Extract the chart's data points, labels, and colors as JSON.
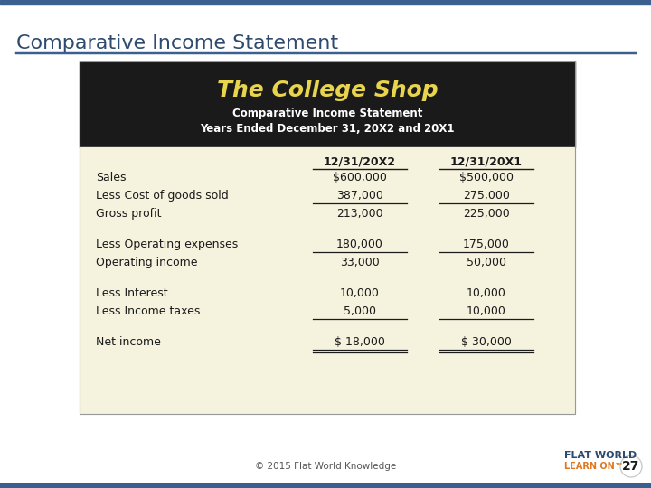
{
  "title": "Comparative Income Statement",
  "title_color": "#2e4a6e",
  "title_fontsize": 16,
  "bg_color": "#ffffff",
  "header_bg": "#1a1a1a",
  "table_bg": "#f5f2de",
  "company_name": "The College Shop",
  "company_color": "#e8d44d",
  "company_fontsize": 18,
  "subtitle1": "Comparative Income Statement",
  "subtitle2": "Years Ended December 31, 20X2 and 20X1",
  "subtitle_color": "#ffffff",
  "col1_header": "12/31/20X2",
  "col2_header": "12/31/20X1",
  "rows": [
    {
      "label": "Sales",
      "col1": "$600,000",
      "col2": "$500,000",
      "ul1": false,
      "ul2": false,
      "space_before": false,
      "double_ul": false
    },
    {
      "label": "Less Cost of goods sold",
      "col1": "387,000",
      "col2": "275,000",
      "ul1": true,
      "ul2": true,
      "space_before": false,
      "double_ul": false
    },
    {
      "label": "Gross profit",
      "col1": "213,000",
      "col2": "225,000",
      "ul1": false,
      "ul2": false,
      "space_before": false,
      "double_ul": false
    },
    {
      "label": "Less Operating expenses",
      "col1": "180,000",
      "col2": "175,000",
      "ul1": true,
      "ul2": true,
      "space_before": true,
      "double_ul": false
    },
    {
      "label": "Operating income",
      "col1": "33,000",
      "col2": "50,000",
      "ul1": false,
      "ul2": false,
      "space_before": false,
      "double_ul": false
    },
    {
      "label": "Less Interest",
      "col1": "10,000",
      "col2": "10,000",
      "ul1": false,
      "ul2": false,
      "space_before": true,
      "double_ul": false
    },
    {
      "label": "Less Income taxes",
      "col1": "5,000",
      "col2": "10,000",
      "ul1": true,
      "ul2": true,
      "space_before": false,
      "double_ul": false
    },
    {
      "label": "Net income",
      "col1": "$ 18,000",
      "col2": "$ 30,000",
      "ul1": true,
      "ul2": true,
      "space_before": true,
      "double_ul": true
    }
  ],
  "footer_text": "© 2015 Flat World Knowledge",
  "footer_color": "#555555",
  "page_num": "27",
  "brand_line1": "FLAT WORLD",
  "brand_line2": "LEARN ON™",
  "brand_color1": "#2e4a6e",
  "brand_color2": "#e07820",
  "top_bar_color": "#3a6090",
  "bottom_bar_color": "#3a6090"
}
